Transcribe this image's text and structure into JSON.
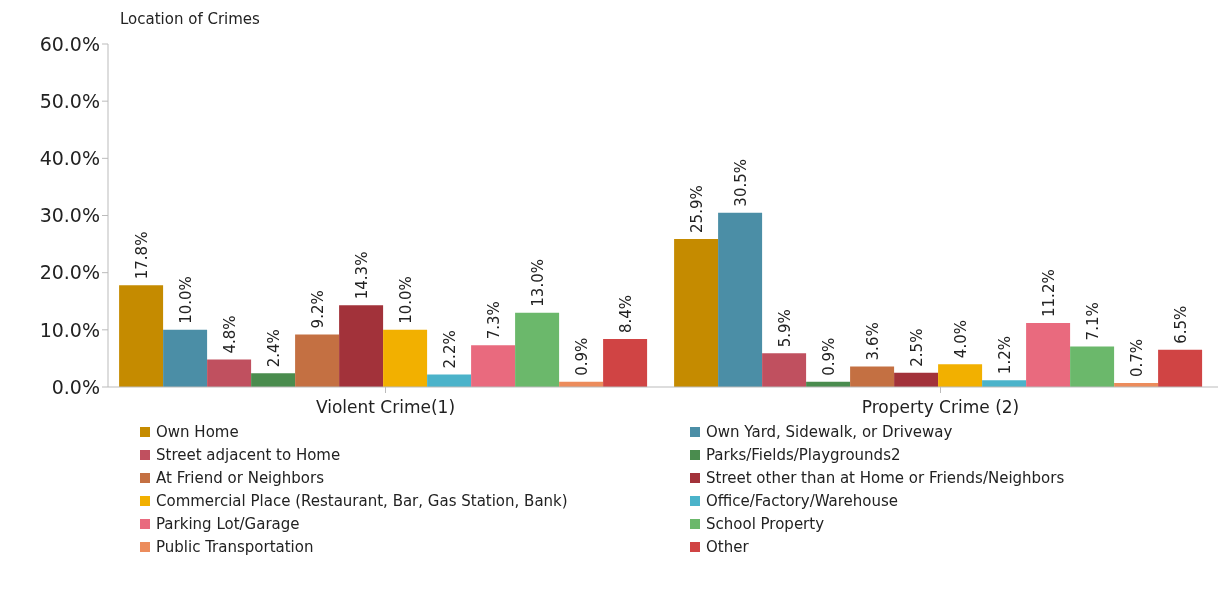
{
  "chart_data": {
    "type": "bar",
    "title": "Location of Crimes",
    "categories": [
      "Violent Crime(1)",
      "Property Crime (2)"
    ],
    "series": [
      {
        "name": "Own Home",
        "color": "#c58b00",
        "values": [
          17.8,
          25.9
        ],
        "value_labels": [
          "17.8%",
          "25.9%"
        ]
      },
      {
        "name": "Own Yard, Sidewalk, or Driveway",
        "color": "#4b8ea6",
        "values": [
          10.0,
          30.5
        ],
        "value_labels": [
          "10.0%",
          "30.5%"
        ]
      },
      {
        "name": "Street adjacent to Home",
        "color": "#c0505f",
        "values": [
          4.8,
          5.9
        ],
        "value_labels": [
          "4.8%",
          "5.9%"
        ]
      },
      {
        "name": "Parks/Fields/Playgrounds2",
        "color": "#4a8c4e",
        "values": [
          2.4,
          0.9
        ],
        "value_labels": [
          "2.4%",
          "0.9%"
        ]
      },
      {
        "name": "At Friend or Neighbors",
        "color": "#c47042",
        "values": [
          9.2,
          3.6
        ],
        "value_labels": [
          "9.2%",
          "3.6%"
        ]
      },
      {
        "name": "Street other than at Home or Friends/Neighbors",
        "color": "#a2323a",
        "values": [
          14.3,
          2.5
        ],
        "value_labels": [
          "14.3%",
          "2.5%"
        ]
      },
      {
        "name": "Commercial Place (Restaurant, Bar, Gas Station, Bank)",
        "color": "#f2b000",
        "values": [
          10.0,
          4.0
        ],
        "value_labels": [
          "10.0%",
          "4.0%"
        ]
      },
      {
        "name": "Office/Factory/Warehouse",
        "color": "#4bb3ca",
        "values": [
          2.2,
          1.2
        ],
        "value_labels": [
          "2.2%",
          "1.2%"
        ]
      },
      {
        "name": "Parking Lot/Garage",
        "color": "#e96a7e",
        "values": [
          7.3,
          11.2
        ],
        "value_labels": [
          "7.3%",
          "11.2%"
        ]
      },
      {
        "name": "School Property",
        "color": "#6bb86b",
        "values": [
          13.0,
          7.1
        ],
        "value_labels": [
          "13.0%",
          "7.1%"
        ]
      },
      {
        "name": "Public Transportation",
        "color": "#ec8c5c",
        "values": [
          0.9,
          0.7
        ],
        "value_labels": [
          "0.9%",
          "0.7%"
        ]
      },
      {
        "name": "Other",
        "color": "#d04444",
        "values": [
          8.4,
          6.5
        ],
        "value_labels": [
          "8.4%",
          "6.5%"
        ]
      }
    ],
    "ylim": [
      0,
      60
    ],
    "yticks": [
      {
        "value": 0,
        "label": "0.0%"
      },
      {
        "value": 10,
        "label": "10.0%"
      },
      {
        "value": 20,
        "label": "20.0%"
      },
      {
        "value": 30,
        "label": "30.0%"
      },
      {
        "value": 40,
        "label": "40.0%"
      },
      {
        "value": 50,
        "label": "50.0%"
      },
      {
        "value": 60,
        "label": "60.0%"
      }
    ],
    "grid": false,
    "legend": "bottom"
  }
}
